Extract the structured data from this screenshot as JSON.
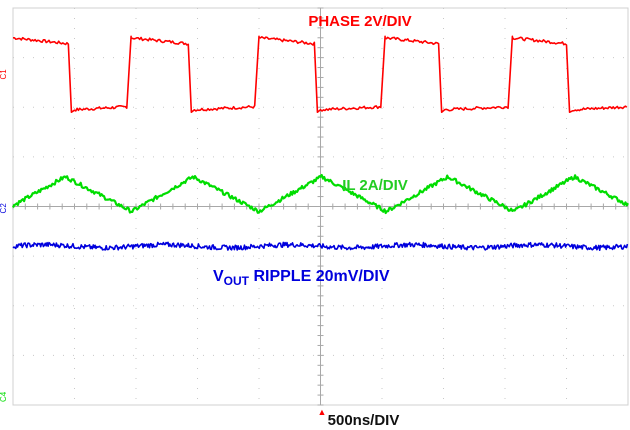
{
  "chart_data": {
    "type": "line",
    "title": "",
    "timebase_label": "500ns/DIV",
    "grid": true,
    "divisions": {
      "x": 10,
      "y": 8
    },
    "series": [
      {
        "name": "PHASE 2V/DIV",
        "channel_marker": "C1",
        "color": "#ff0000",
        "shape": "square",
        "high_div": 7.4,
        "low_div": 5.95,
        "edges_div": [
          [
            0.0,
            0.95,
            true
          ],
          [
            1.92,
            2.9,
            false
          ],
          [
            4.0,
            4.95,
            false
          ],
          [
            6.05,
            6.97,
            false
          ],
          [
            8.12,
            9.05,
            false
          ]
        ],
        "droop_div": 0.12
      },
      {
        "name": "IL 2A/DIV",
        "channel_marker": "C4",
        "color": "#00dd00",
        "shape": "triangle",
        "peaks_div": [
          0.85,
          2.93,
          5.02,
          7.07,
          9.13
        ],
        "valleys_div": [
          -0.17,
          1.93,
          4.0,
          6.07,
          8.14,
          10.2
        ],
        "peak_level_div": 4.6,
        "valley_level_div": 3.9
      },
      {
        "name": "RIPPLE 20mV/DIV",
        "name_prefix": "V",
        "name_subscript": "OUT",
        "channel_marker": "C2",
        "color": "#0000dd",
        "shape": "flat",
        "level_div": 3.2,
        "ripple_div": 0.05
      }
    ],
    "bottom_marker": "1"
  }
}
